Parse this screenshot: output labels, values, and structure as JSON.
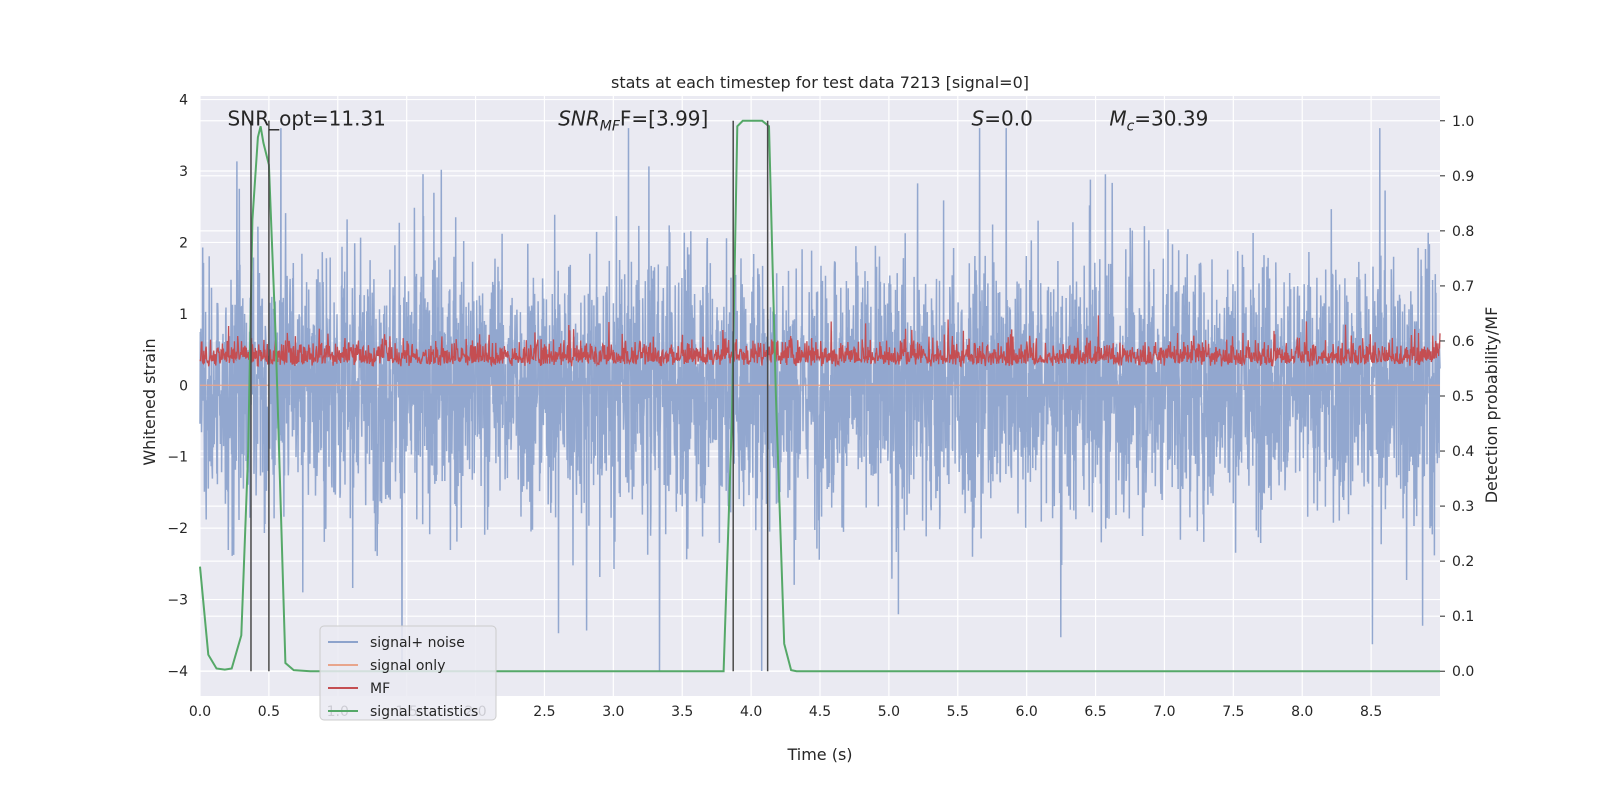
{
  "chart_data": {
    "type": "line",
    "title": "stats at each timestep for test data 7213 [signal=0]",
    "xlabel": "Time (s)",
    "ylabel_left": "Whitened strain",
    "ylabel_right": "Detection probability/MF",
    "xlim": [
      0,
      9
    ],
    "ylim_left": [
      -4.35,
      4.05
    ],
    "ylim_right": [
      -0.045,
      1.045
    ],
    "x_ticks": [
      "0.0",
      "0.5",
      "1.0",
      "1.5",
      "2.0",
      "2.5",
      "3.0",
      "3.5",
      "4.0",
      "4.5",
      "5.0",
      "5.5",
      "6.0",
      "6.5",
      "7.0",
      "7.5",
      "8.0",
      "8.5"
    ],
    "y_ticks_left": [
      "−4",
      "−3",
      "−2",
      "−1",
      "0",
      "1",
      "2",
      "3",
      "4"
    ],
    "y_ticks_right": [
      "0.0",
      "0.1",
      "0.2",
      "0.3",
      "0.4",
      "0.5",
      "0.6",
      "0.7",
      "0.8",
      "0.9",
      "1.0"
    ],
    "grid": true,
    "legend_position": "lower-left",
    "annotations": [
      {
        "text": "SNR_opt=11.31",
        "x": 0.2,
        "y": 3.75
      },
      {
        "text": "SNR",
        "sub": "MF",
        "suffix": "F=[3.99]",
        "x": 2.6,
        "y": 3.75,
        "italic": true
      },
      {
        "text": "S",
        "suffix": "=0.0",
        "x": 5.6,
        "y": 3.75,
        "italic": true
      },
      {
        "text": "M",
        "sub": "c",
        "suffix": "=30.39",
        "x": 6.6,
        "y": 3.75,
        "italic": true
      }
    ],
    "detection_markers_x": [
      0.37,
      0.5,
      3.87,
      4.12
    ],
    "series": [
      {
        "name": "signal+ noise",
        "color": "#8da3cc",
        "axis": "left",
        "description_stats": {
          "typical_range": [
            -2.3,
            2.4
          ],
          "extreme_min": -4.0,
          "extreme_max": 3.6
        }
      },
      {
        "name": "signal only",
        "color": "#e8a58c",
        "axis": "left",
        "constant": 0.0
      },
      {
        "name": "MF",
        "color": "#c44e52",
        "axis": "left",
        "description_stats": {
          "typical_range": [
            0.05,
            0.7
          ],
          "extreme_max": 1.0
        }
      },
      {
        "name": "signal statistics",
        "color": "#55a868",
        "axis": "right",
        "x": [
          0.0,
          0.06,
          0.12,
          0.18,
          0.23,
          0.3,
          0.35,
          0.38,
          0.42,
          0.44,
          0.46,
          0.5,
          0.55,
          0.62,
          0.68,
          0.8,
          1.0,
          2.0,
          3.0,
          3.8,
          3.86,
          3.9,
          3.94,
          4.0,
          4.08,
          4.13,
          4.18,
          4.24,
          4.29,
          4.33,
          5.0,
          6.0,
          7.0,
          8.0,
          9.0
        ],
        "y": [
          0.19,
          0.03,
          0.005,
          0.003,
          0.005,
          0.065,
          0.4,
          0.82,
          0.97,
          0.99,
          0.96,
          0.92,
          0.6,
          0.015,
          0.002,
          0.0,
          0.0,
          0.0,
          0.0,
          0.0,
          0.45,
          0.99,
          1.0,
          1.0,
          1.0,
          0.99,
          0.5,
          0.05,
          0.002,
          0.0,
          0.0,
          0.0,
          0.0,
          0.0,
          0.0
        ]
      }
    ],
    "colors": {
      "plot_bg": "#eaeaf2",
      "grid": "#ffffff",
      "marker_line": "#4a4a4a"
    }
  }
}
